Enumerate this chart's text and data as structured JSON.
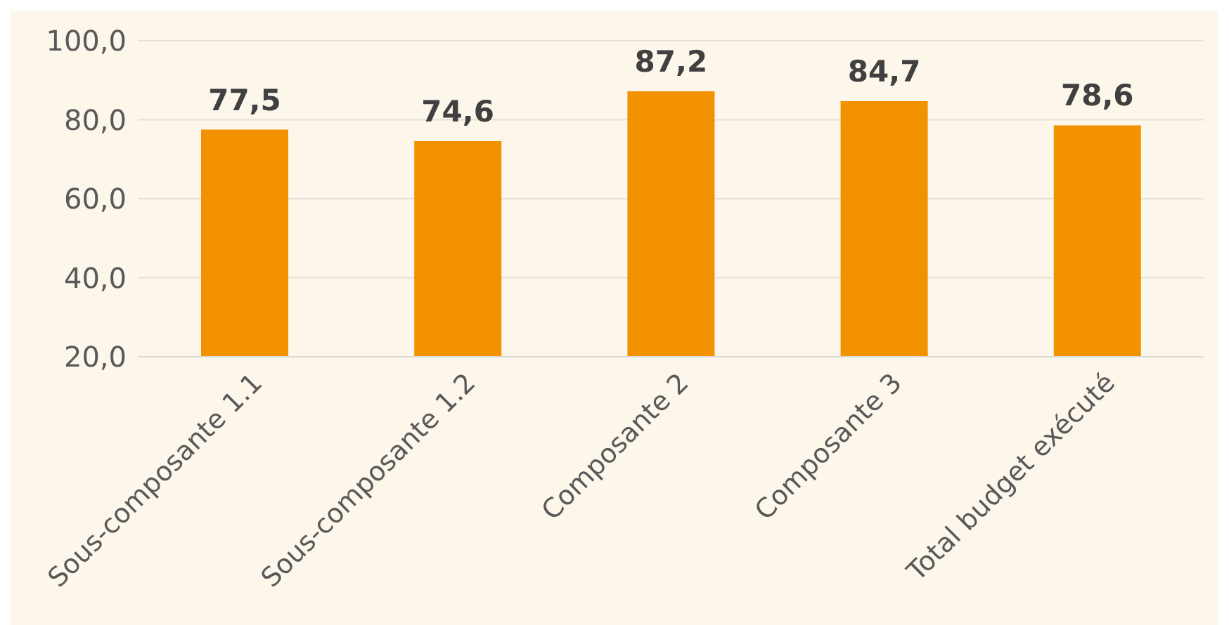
{
  "chart_data": {
    "type": "bar",
    "categories": [
      "Sous-composante 1.1",
      "Sous-composante 1.2",
      "Composante 2",
      "Composante 3",
      "Total budget exécuté"
    ],
    "values": [
      77.5,
      74.6,
      87.2,
      84.7,
      78.6
    ],
    "color": "#f39200",
    "value_labels": [
      "77,5",
      "74,6",
      "87,2",
      "84,7",
      "78,6"
    ],
    "ylim": [
      20,
      100
    ],
    "yticks": [
      {
        "value": 20,
        "label": "20,0"
      },
      {
        "value": 40,
        "label": "40,0"
      },
      {
        "value": 60,
        "label": "60,0"
      },
      {
        "value": 80,
        "label": "80,0"
      },
      {
        "value": 100,
        "label": "100,0"
      }
    ],
    "grid": "y",
    "legend": false
  }
}
